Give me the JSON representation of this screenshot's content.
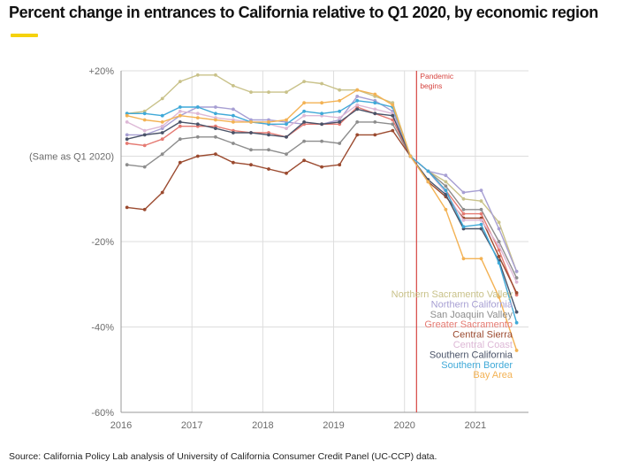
{
  "title": "Percent change in entrances to California relative to Q1 2020, by economic region",
  "source": "Source: California Policy Lab analysis of University of California Consumer Credit Panel (UC-CCP) data.",
  "colors": {
    "accent": "#f5d20c",
    "pandemic_line": "#d64541",
    "gridline": "#dddddd"
  },
  "chart_data": {
    "type": "line",
    "title": "Percent change in entrances to California relative to Q1 2020, by economic region",
    "xlabel": "",
    "ylabel": "",
    "xlim": [
      2016,
      2021.75
    ],
    "ylim": [
      -60,
      20
    ],
    "x_ticks": [
      {
        "value": 2016,
        "label": "2016"
      },
      {
        "value": 2017,
        "label": "2017"
      },
      {
        "value": 2018,
        "label": "2018"
      },
      {
        "value": 2019,
        "label": "2019"
      },
      {
        "value": 2020,
        "label": "2020"
      },
      {
        "value": 2021,
        "label": "2021"
      }
    ],
    "y_ticks": [
      {
        "value": 20,
        "label": "+20%"
      },
      {
        "value": 0,
        "label": "(Same as Q1 2020)"
      },
      {
        "value": -20,
        "label": "-20%"
      },
      {
        "value": -40,
        "label": "-40%"
      },
      {
        "value": -60,
        "label": "-60%"
      }
    ],
    "grid": true,
    "legend_position": "bottom-right",
    "annotation": {
      "x": 2020.17,
      "lines": [
        "Pandemic",
        "begins"
      ]
    },
    "x": [
      2016.083,
      2016.333,
      2016.583,
      2016.833,
      2017.083,
      2017.333,
      2017.583,
      2017.833,
      2018.083,
      2018.333,
      2018.583,
      2018.833,
      2019.083,
      2019.333,
      2019.583,
      2019.833,
      2020.083,
      2020.333,
      2020.583,
      2020.833,
      2021.083,
      2021.333,
      2021.583
    ],
    "series": [
      {
        "name": "Northern Sacramento Valley",
        "color": "#c9c28a",
        "values": [
          10,
          10.5,
          13.5,
          17.5,
          19,
          19,
          16.5,
          15,
          15,
          15,
          17.5,
          17,
          15.5,
          15.5,
          14,
          12.5,
          0,
          -3.5,
          -6,
          -10,
          -10.5,
          -15.5,
          -27
        ]
      },
      {
        "name": "Northern California",
        "color": "#a79fd3",
        "values": [
          5,
          5,
          6.5,
          9.5,
          11.5,
          11.5,
          11,
          8.5,
          8.5,
          8,
          7.5,
          7.5,
          8.5,
          14,
          13,
          10.5,
          0,
          -3.5,
          -4.5,
          -8.5,
          -8,
          -17,
          -27
        ]
      },
      {
        "name": "San Joaquin Valley",
        "color": "#8d8d8d",
        "values": [
          -2,
          -2.5,
          0.5,
          4,
          4.5,
          4.5,
          3,
          1.5,
          1.5,
          0.5,
          3.5,
          3.5,
          3,
          8,
          8,
          7.5,
          0,
          -3.5,
          -7,
          -12.5,
          -12.5,
          -20,
          -28.5
        ]
      },
      {
        "name": "Greater Sacramento",
        "color": "#e57a72",
        "values": [
          3,
          2.5,
          4,
          7,
          7,
          7,
          6,
          5.5,
          5.5,
          4.5,
          7.5,
          7.5,
          7.5,
          11.5,
          10,
          8.5,
          0,
          -3.5,
          -8,
          -13.5,
          -13.5,
          -22,
          -32.5
        ]
      },
      {
        "name": "Central Sierra",
        "color": "#9b4a2f",
        "values": [
          -12,
          -12.5,
          -8.5,
          -1.5,
          0,
          0.5,
          -1.5,
          -2,
          -3,
          -4,
          -1,
          -2.5,
          -2,
          5,
          5,
          6,
          0,
          -6,
          -9.5,
          -14.5,
          -14.5,
          -23.5,
          -32
        ]
      },
      {
        "name": "Central Coast",
        "color": "#ddb8d6",
        "values": [
          8,
          6,
          7,
          10.5,
          10,
          9,
          8.5,
          8,
          7.5,
          6.5,
          9.5,
          9.5,
          9,
          12,
          11,
          10,
          0,
          -3.5,
          -8.5,
          -15,
          -15,
          -21,
          -29.5
        ]
      },
      {
        "name": "Southern California",
        "color": "#4a5368",
        "values": [
          4,
          5,
          5.5,
          8,
          7.5,
          6.5,
          5.5,
          5.5,
          5,
          4.5,
          8,
          7.5,
          8,
          11,
          10,
          9.5,
          0,
          -5.5,
          -9,
          -17,
          -17,
          -24.5,
          -36.5
        ]
      },
      {
        "name": "Southern Border",
        "color": "#3fa9d8",
        "values": [
          10,
          10,
          9.5,
          11.5,
          11.5,
          10,
          9.5,
          8,
          7.5,
          7.5,
          10.5,
          10,
          10.5,
          13,
          12.5,
          11.5,
          0,
          -3.5,
          -8,
          -16.5,
          -16,
          -25,
          -39
        ]
      },
      {
        "name": "Bay Area",
        "color": "#f3b254",
        "values": [
          9.5,
          8.5,
          8,
          9.5,
          9,
          8.5,
          8,
          8,
          8,
          8.5,
          12.5,
          12.5,
          13,
          15.5,
          14.5,
          12,
          0,
          -6,
          -12.5,
          -24,
          -24,
          -33,
          -45.5
        ]
      }
    ]
  }
}
